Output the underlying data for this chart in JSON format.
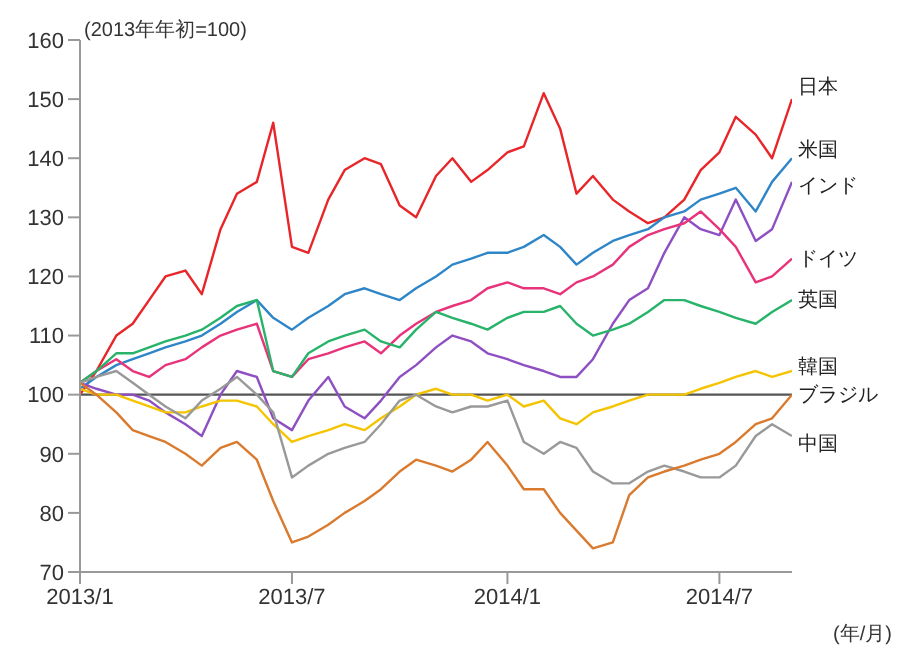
{
  "chart_data": {
    "type": "line",
    "ylabel": "(2013年年初=100)",
    "xlabel": "(年/月)",
    "x": [
      "2013-01-01",
      "2013-01-15",
      "2013-02-01",
      "2013-02-15",
      "2013-03-01",
      "2013-03-15",
      "2013-04-01",
      "2013-04-15",
      "2013-05-01",
      "2013-05-15",
      "2013-06-01",
      "2013-06-15",
      "2013-07-01",
      "2013-07-15",
      "2013-08-01",
      "2013-08-15",
      "2013-09-01",
      "2013-09-15",
      "2013-10-01",
      "2013-10-15",
      "2013-11-01",
      "2013-11-15",
      "2013-12-01",
      "2013-12-15",
      "2014-01-01",
      "2014-01-15",
      "2014-02-01",
      "2014-02-15",
      "2014-03-01",
      "2014-03-15",
      "2014-04-01",
      "2014-04-15",
      "2014-05-01",
      "2014-05-15",
      "2014-06-01",
      "2014-06-15",
      "2014-07-01",
      "2014-07-15",
      "2014-08-01",
      "2014-08-15",
      "2014-09-01"
    ],
    "series": [
      {
        "name": "日本",
        "color": "#e8262a",
        "values": [
          100,
          104,
          110,
          112,
          116,
          120,
          121,
          117,
          128,
          134,
          136,
          146,
          125,
          124,
          133,
          138,
          140,
          139,
          132,
          130,
          137,
          140,
          136,
          138,
          141,
          142,
          151,
          145,
          134,
          137,
          133,
          131,
          129,
          130,
          133,
          138,
          141,
          147,
          144,
          140,
          150
        ]
      },
      {
        "name": "米国",
        "color": "#2e86c8",
        "values": [
          101,
          103,
          105,
          106,
          107,
          108,
          109,
          110,
          112,
          114,
          116,
          113,
          111,
          113,
          115,
          117,
          118,
          117,
          116,
          118,
          120,
          122,
          123,
          124,
          124,
          125,
          127,
          125,
          122,
          124,
          126,
          127,
          128,
          130,
          131,
          133,
          134,
          135,
          131,
          136,
          140
        ]
      },
      {
        "name": "インド",
        "color": "#8e4fc2",
        "values": [
          102,
          101,
          100,
          100,
          99,
          97,
          95,
          93,
          100,
          104,
          103,
          96,
          94,
          99,
          103,
          98,
          96,
          99,
          103,
          105,
          108,
          110,
          109,
          107,
          106,
          105,
          104,
          103,
          103,
          106,
          112,
          116,
          118,
          124,
          130,
          128,
          127,
          133,
          126,
          128,
          136
        ]
      },
      {
        "name": "ドイツ",
        "color": "#e8337a",
        "values": [
          102,
          104,
          106,
          104,
          103,
          105,
          106,
          108,
          110,
          111,
          112,
          104,
          103,
          106,
          107,
          108,
          109,
          107,
          110,
          112,
          114,
          115,
          116,
          118,
          119,
          118,
          118,
          117,
          119,
          120,
          122,
          125,
          127,
          128,
          129,
          131,
          128,
          125,
          119,
          120,
          123
        ]
      },
      {
        "name": "英国",
        "color": "#28b36a",
        "values": [
          102,
          104,
          107,
          107,
          108,
          109,
          110,
          111,
          113,
          115,
          116,
          104,
          103,
          107,
          109,
          110,
          111,
          109,
          108,
          111,
          114,
          113,
          112,
          111,
          113,
          114,
          114,
          115,
          112,
          110,
          111,
          112,
          114,
          116,
          116,
          115,
          114,
          113,
          112,
          114,
          116
        ]
      },
      {
        "name": "韓国",
        "color": "#f5c400",
        "values": [
          101,
          100,
          100,
          99,
          98,
          97,
          97,
          98,
          99,
          99,
          98,
          95,
          92,
          93,
          94,
          95,
          94,
          96,
          98,
          100,
          101,
          100,
          100,
          99,
          100,
          98,
          99,
          96,
          95,
          97,
          98,
          99,
          100,
          100,
          100,
          101,
          102,
          103,
          104,
          103,
          104
        ]
      },
      {
        "name": "中国",
        "color": "#999999",
        "values": [
          102,
          103,
          104,
          102,
          100,
          98,
          96,
          99,
          101,
          103,
          100,
          97,
          86,
          88,
          90,
          91,
          92,
          95,
          99,
          100,
          98,
          97,
          98,
          98,
          99,
          92,
          90,
          92,
          91,
          87,
          85,
          85,
          87,
          88,
          87,
          86,
          86,
          88,
          93,
          95,
          93
        ]
      },
      {
        "name": "ブラジル",
        "color": "#d97a2e",
        "values": [
          102,
          100,
          97,
          94,
          93,
          92,
          90,
          88,
          91,
          92,
          89,
          82,
          75,
          76,
          78,
          80,
          82,
          84,
          87,
          89,
          88,
          87,
          89,
          92,
          88,
          84,
          84,
          80,
          77,
          74,
          75,
          83,
          86,
          87,
          88,
          89,
          90,
          92,
          95,
          96,
          100
        ]
      }
    ],
    "xlim": [
      "2013-01-01",
      "2014-09-01"
    ],
    "xticks": [
      {
        "value": "2013-01-01",
        "label": "2013/1"
      },
      {
        "value": "2013-07-01",
        "label": "2013/7"
      },
      {
        "value": "2014-01-01",
        "label": "2014/1"
      },
      {
        "value": "2014-07-01",
        "label": "2014/7"
      }
    ],
    "ylim": [
      70,
      160
    ],
    "yticks": [
      70,
      80,
      90,
      100,
      110,
      120,
      130,
      140,
      150,
      160
    ],
    "ref_lines": [
      {
        "axis": "y",
        "value": 100,
        "color": "#555555"
      }
    ],
    "marker": "none",
    "line_style": "solid",
    "grid": false,
    "legend": false
  }
}
